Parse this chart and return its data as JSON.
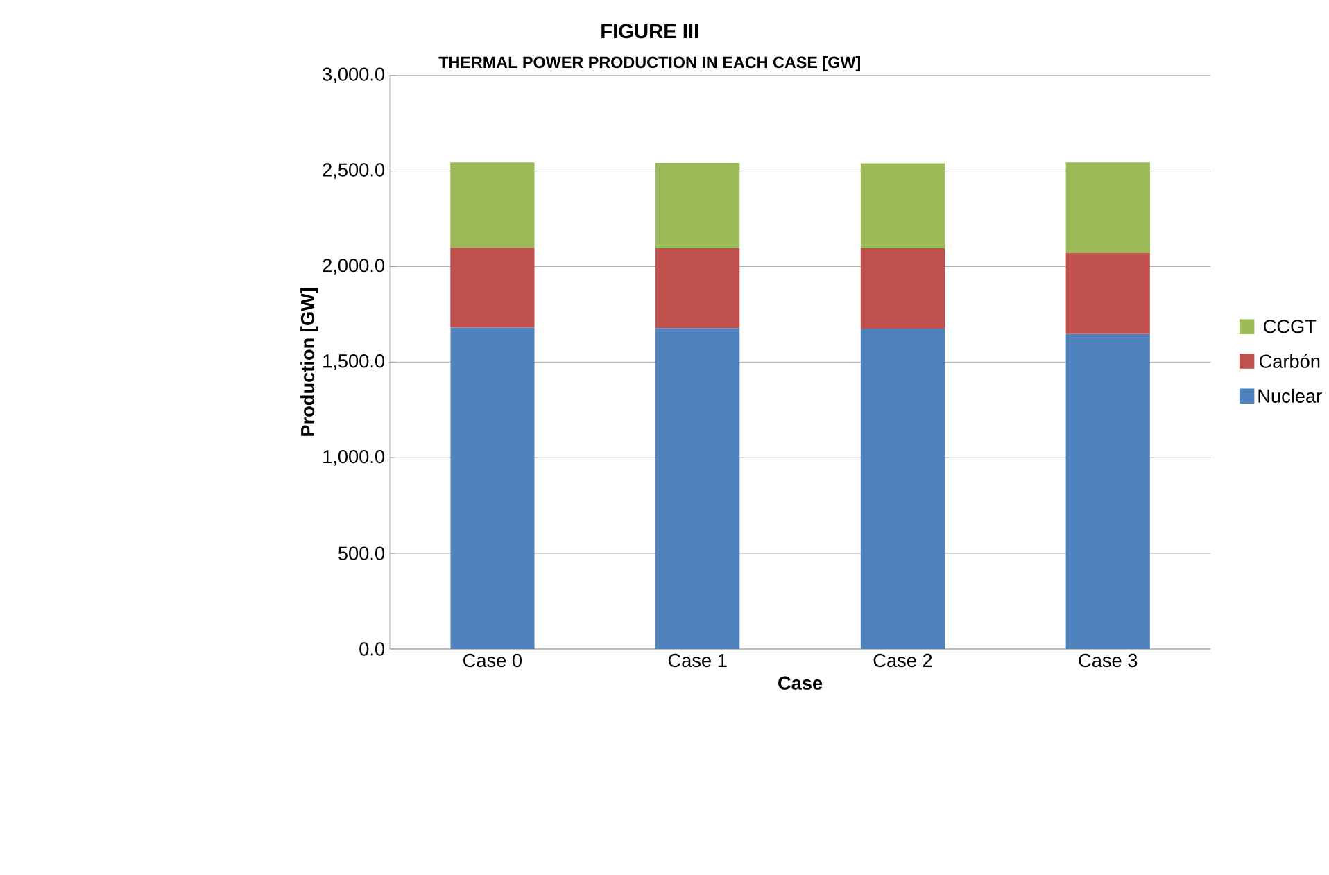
{
  "chart_data": {
    "type": "bar",
    "title": "FIGURE III",
    "subtitle": "THERMAL POWER PRODUCTION IN EACH CASE [GW]",
    "xlabel": "Case",
    "ylabel": "Production [GW]",
    "categories": [
      "Case 0",
      "Case 1",
      "Case 2",
      "Case 3"
    ],
    "stacked": true,
    "series": [
      {
        "name": "Nuclear",
        "color": "#4f81bd",
        "values": [
          1681,
          1678,
          1675,
          1647
        ]
      },
      {
        "name": "Carbón",
        "color": "#c0504d",
        "values": [
          418,
          418,
          421,
          424
        ]
      },
      {
        "name": "CCGT",
        "color": "#9bbb59",
        "values": [
          446,
          446,
          444,
          474
        ]
      }
    ],
    "ylim": [
      0,
      3000
    ],
    "yticks": [
      {
        "value": 0,
        "label": "0.0"
      },
      {
        "value": 500,
        "label": "500.0"
      },
      {
        "value": 1000,
        "label": "1,000.0"
      },
      {
        "value": 1500,
        "label": "1,500.0"
      },
      {
        "value": 2000,
        "label": "2,000.0"
      },
      {
        "value": 2500,
        "label": "2,500.0"
      },
      {
        "value": 3000,
        "label": "3,000.0"
      }
    ],
    "grid": "y",
    "legend": "right"
  }
}
